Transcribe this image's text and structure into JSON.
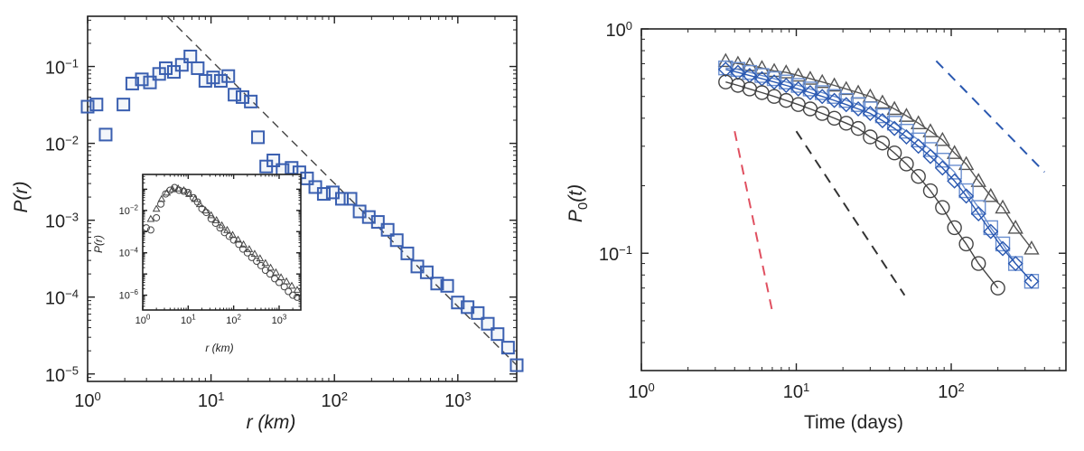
{
  "chart_data": [
    {
      "type": "scatter",
      "panel": "left",
      "xlabel": "r (km)",
      "ylabel": "P(r)",
      "xscale": "log",
      "yscale": "log",
      "xlim": [
        1,
        3000
      ],
      "ylim": [
        8e-06,
        0.45
      ],
      "x_ticks": [
        "10^0",
        "10^1",
        "10^2",
        "10^3"
      ],
      "y_ticks": [
        "10^-5",
        "10^-4",
        "10^-3",
        "10^-2",
        "10^-1"
      ],
      "grid": false,
      "colors": {
        "squares": "#3a5fb0",
        "fit_line": "#444444"
      },
      "series": [
        {
          "marker": "square",
          "x": [
            1.0,
            1.18,
            1.4,
            1.95,
            2.3,
            2.75,
            3.2,
            3.8,
            4.3,
            5.0,
            5.8,
            6.8,
            7.8,
            9.0,
            10.4,
            12.0,
            13.8,
            15.5,
            18.0,
            21.0,
            24.0,
            28.0,
            32.0,
            38.0,
            45.0,
            52.0,
            60.0,
            70.0,
            82.0,
            97.0,
            115.0,
            135.0,
            160.0,
            190.0,
            225.0,
            270.0,
            320.0,
            390.0,
            470.0,
            560.0,
            680.0,
            820.0,
            1000.0,
            1200.0,
            1450.0,
            1750.0,
            2100.0,
            2550.0,
            3000.0
          ],
          "y": [
            0.03,
            0.032,
            0.013,
            0.032,
            0.06,
            0.068,
            0.062,
            0.08,
            0.095,
            0.085,
            0.105,
            0.135,
            0.095,
            0.065,
            0.072,
            0.065,
            0.075,
            0.043,
            0.04,
            0.035,
            0.012,
            0.005,
            0.006,
            0.0045,
            0.0048,
            0.0042,
            0.0035,
            0.0027,
            0.0022,
            0.0023,
            0.0019,
            0.0019,
            0.0013,
            0.0011,
            0.00095,
            0.00075,
            0.00055,
            0.00037,
            0.00025,
            0.00021,
            0.00015,
            0.00014,
            8.5e-05,
            7.4e-05,
            6.2e-05,
            4.5e-05,
            3.3e-05,
            2.2e-05,
            1.3e-05
          ]
        }
      ],
      "fit_line": {
        "style": "dashed",
        "x": [
          4.4,
          3000
        ],
        "y": [
          0.45,
          1.3e-05
        ]
      },
      "inset": {
        "xlabel": "r (km)",
        "ylabel": "P(r)",
        "xlim": [
          1,
          3000
        ],
        "ylim": [
          2e-07,
          0.5
        ],
        "x_ticks": [
          "10^0",
          "10^1",
          "10^2",
          "10^3"
        ],
        "y_ticks": [
          "10^-6",
          "10^-4",
          "10^-2"
        ],
        "series": [
          {
            "marker": "circle",
            "x": [
              1.2,
              1.5,
              2.0,
              2.5,
              3.2,
              4.0,
              5.0,
              6.3,
              8.0,
              10,
              13,
              16,
              20,
              25,
              32,
              40,
              50,
              63,
              80,
              100,
              130,
              160,
              200,
              250,
              320,
              400,
              500,
              630,
              800,
              1000,
              1300,
              1600,
              2000,
              2500
            ],
            "y": [
              0.0015,
              0.0012,
              0.0045,
              0.02,
              0.06,
              0.09,
              0.12,
              0.09,
              0.08,
              0.07,
              0.04,
              0.025,
              0.012,
              0.008,
              0.004,
              0.0025,
              0.0015,
              0.0009,
              0.0006,
              0.0004,
              0.00025,
              0.00015,
              0.0001,
              6e-05,
              4e-05,
              2.5e-05,
              1.5e-05,
              1e-05,
              6e-06,
              4e-06,
              2.5e-06,
              1.5e-06,
              1e-06,
              8e-07
            ]
          },
          {
            "marker": "triangle",
            "x": [
              1.5,
              2.0,
              2.6,
              3.4,
              4.5,
              6.0,
              8.0,
              10.5,
              14,
              18,
              24,
              32,
              42,
              55,
              72,
              95,
              125,
              165,
              220,
              290,
              380,
              500,
              650,
              850,
              1100,
              1450,
              1900,
              2500
            ],
            "y": [
              0.004,
              0.012,
              0.035,
              0.07,
              0.1,
              0.11,
              0.09,
              0.06,
              0.035,
              0.02,
              0.01,
              0.006,
              0.0035,
              0.002,
              0.0012,
              0.0007,
              0.00042,
              0.00025,
              0.00015,
              9e-05,
              5.5e-05,
              3.3e-05,
              2e-05,
              1.2e-05,
              7e-06,
              4.5e-06,
              2.8e-06,
              1.8e-06
            ]
          }
        ]
      }
    },
    {
      "type": "line",
      "panel": "right",
      "xlabel": "Time (days)",
      "ylabel": "P0(t)",
      "ylabel_main": "P",
      "ylabel_sub": "0",
      "ylabel_rest": "(t)",
      "xscale": "log",
      "yscale": "log",
      "xlim": [
        1,
        550
      ],
      "ylim": [
        0.03,
        1.0
      ],
      "x_ticks": [
        "10^0",
        "10^1",
        "10^2"
      ],
      "y_ticks": [
        "10^-1",
        "10^0"
      ],
      "grid": false,
      "colors": {
        "triangles": "#555555",
        "squares": "#6a8fd0",
        "diamonds": "#2a58b0",
        "circles": "#444444",
        "red_dashed": "#e05060",
        "black_dashed": "#333333",
        "blue_dashed": "#2a58b0"
      },
      "series": [
        {
          "marker": "triangle",
          "color": "#555555",
          "x": [
            3.5,
            4.2,
            5.0,
            6.0,
            7.2,
            8.6,
            10.3,
            12.3,
            14.7,
            17.6,
            21.0,
            25.1,
            30.0,
            36.0,
            43.0,
            51.4,
            61.4,
            73.4,
            87.8,
            105,
            125,
            150,
            180,
            215,
            260,
            330
          ],
          "y": [
            0.72,
            0.7,
            0.69,
            0.67,
            0.65,
            0.64,
            0.62,
            0.6,
            0.58,
            0.56,
            0.54,
            0.52,
            0.5,
            0.47,
            0.44,
            0.41,
            0.38,
            0.35,
            0.32,
            0.28,
            0.25,
            0.21,
            0.18,
            0.16,
            0.13,
            0.105
          ]
        },
        {
          "marker": "square",
          "color": "#6a8fd0",
          "x": [
            3.5,
            4.2,
            5.0,
            6.0,
            7.2,
            8.6,
            10.3,
            12.3,
            14.7,
            17.6,
            21.0,
            25.1,
            30.0,
            36.0,
            43.0,
            51.4,
            61.4,
            73.4,
            87.8,
            105,
            125,
            150,
            180,
            215,
            260,
            330
          ],
          "y": [
            0.67,
            0.66,
            0.64,
            0.62,
            0.6,
            0.58,
            0.56,
            0.54,
            0.52,
            0.5,
            0.48,
            0.46,
            0.44,
            0.41,
            0.38,
            0.35,
            0.32,
            0.29,
            0.26,
            0.23,
            0.19,
            0.16,
            0.13,
            0.11,
            0.09,
            0.075
          ]
        },
        {
          "marker": "diamond",
          "color": "#2a58b0",
          "x": [
            3.5,
            4.2,
            5.0,
            6.0,
            7.2,
            8.6,
            10.3,
            12.3,
            14.7,
            17.6,
            21.0,
            25.1,
            30.0,
            36.0,
            43.0,
            51.4,
            61.4,
            73.4,
            87.8,
            105,
            125,
            150,
            180,
            215,
            260,
            330
          ],
          "y": [
            0.66,
            0.64,
            0.62,
            0.6,
            0.58,
            0.56,
            0.54,
            0.52,
            0.5,
            0.48,
            0.46,
            0.44,
            0.42,
            0.39,
            0.36,
            0.33,
            0.3,
            0.27,
            0.24,
            0.21,
            0.18,
            0.15,
            0.125,
            0.105,
            0.09,
            0.075
          ]
        },
        {
          "marker": "circle",
          "color": "#444444",
          "x": [
            3.5,
            4.2,
            5.0,
            6.0,
            7.2,
            8.6,
            10.3,
            12.3,
            14.7,
            17.6,
            21.0,
            25.1,
            30.0,
            36.0,
            43.0,
            51.4,
            61.4,
            73.4,
            87.8,
            105,
            125,
            150,
            200
          ],
          "y": [
            0.58,
            0.56,
            0.54,
            0.52,
            0.5,
            0.48,
            0.46,
            0.44,
            0.42,
            0.4,
            0.38,
            0.36,
            0.33,
            0.31,
            0.28,
            0.25,
            0.22,
            0.19,
            0.16,
            0.13,
            0.11,
            0.09,
            0.07
          ]
        }
      ],
      "reference_lines": [
        {
          "style": "dashed",
          "color": "#e05060",
          "x": [
            4.0,
            7.0
          ],
          "y": [
            0.35,
            0.055
          ]
        },
        {
          "style": "dashed",
          "color": "#333333",
          "x": [
            10.0,
            50.0
          ],
          "y": [
            0.35,
            0.065
          ]
        },
        {
          "style": "dashed",
          "color": "#2a58b0",
          "x": [
            80.0,
            400.0
          ],
          "y": [
            0.72,
            0.23
          ]
        }
      ]
    }
  ]
}
